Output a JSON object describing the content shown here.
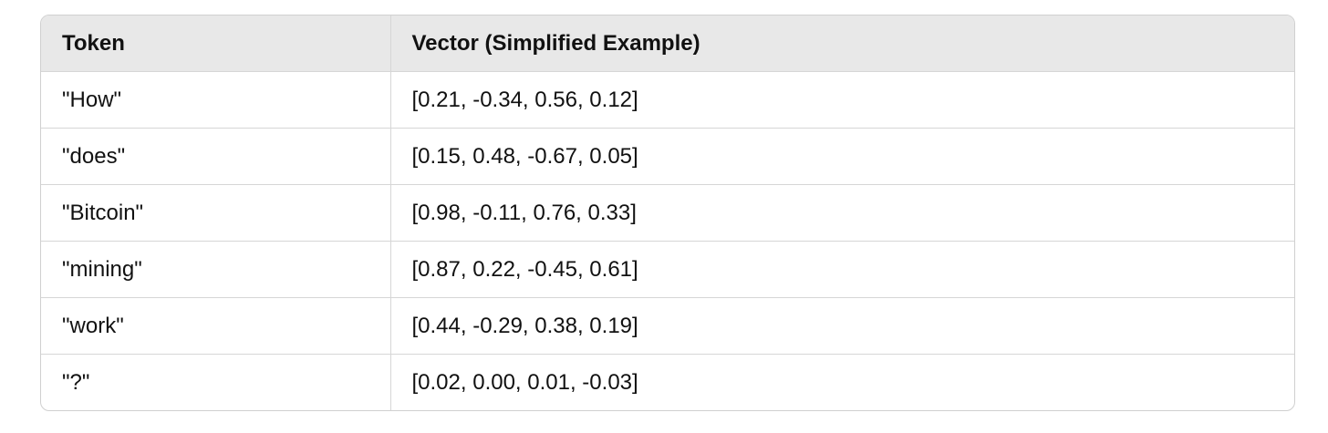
{
  "table": {
    "header": [
      "Token",
      "Vector (Simplified Example)"
    ],
    "rows": [
      [
        "\"How\"",
        "[0.21, -0.34, 0.56, 0.12]"
      ],
      [
        "\"does\"",
        "[0.15, 0.48, -0.67, 0.05]"
      ],
      [
        "\"Bitcoin\"",
        "[0.98, -0.11, 0.76, 0.33]"
      ],
      [
        "\"mining\"",
        "[0.87, 0.22, -0.45, 0.61]"
      ],
      [
        "\"work\"",
        "[0.44, -0.29, 0.38, 0.19]"
      ],
      [
        "\"?\"",
        "[0.02, 0.00, 0.01, -0.03]"
      ]
    ]
  }
}
